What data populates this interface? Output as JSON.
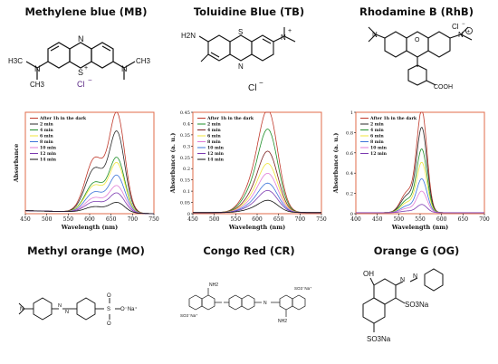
{
  "titles": {
    "mb": "Methylene blue (MB)",
    "tb": "Toluidine Blue (TB)",
    "rhb": "Rhodamine B (RhB)",
    "mo": "Methyl orange (MO)",
    "cr": "Congo Red (CR)",
    "og": "Orange G (OG)"
  },
  "structure_labels": {
    "mb": {
      "N_top": "N",
      "S": "S",
      "plus": "+",
      "Cl": "Cl",
      "minus": "−",
      "N_left": "N",
      "N_right": "N",
      "H3C": "H3C",
      "CH3_l": "CH3",
      "CH3_r": "CH3"
    },
    "tb": {
      "H2N": "H2N",
      "S": "S",
      "N_mid": "N",
      "N_plus": "N",
      "plus": "+",
      "Cl": "Cl",
      "minus": "−"
    },
    "rhb": {
      "Cl": "Cl",
      "minus": "−",
      "N_l": "N",
      "N_r": "N",
      "plus": "+",
      "O": "O",
      "COOH": "COOH"
    },
    "mo": {
      "N_amine": "N",
      "N1": "N",
      "N2": "N",
      "S": "S",
      "O_top": "O",
      "O_bot": "O",
      "ONa": "O⁻Na⁺"
    },
    "cr": {
      "NH2_top": "NH2",
      "NH2_bot": "NH2",
      "SO3Na_l": "SO3⁻Na⁺",
      "SO3Na_r": "SO3⁻Na⁺",
      "N": "N"
    },
    "og": {
      "OH": "OH",
      "N1": "N",
      "N2": "N",
      "SO3Na_1": "SO3Na",
      "SO3Na_2": "SO3Na"
    }
  },
  "colors": {
    "panel_border": "#e06b4a",
    "series": [
      "#c0392b",
      "#2b2b2b",
      "#1f8f2a",
      "#f0e63a",
      "#3d74d9",
      "#e07bd6",
      "#7b3ab0",
      "#111111",
      "#8a4b2a"
    ]
  },
  "chart_data": [
    {
      "id": "mb",
      "type": "line",
      "xlabel": "Wavelength (nm)",
      "ylabel": "Absorbance",
      "xlim": [
        450,
        750
      ],
      "xticks": [
        450,
        500,
        550,
        600,
        650,
        700,
        750
      ],
      "ylim": [
        0,
        1
      ],
      "yticks": [],
      "legend_position": "top-left",
      "peak_x": 664,
      "shoulder_x": 612,
      "series": [
        {
          "name": "After 1h in the dark",
          "peak": 0.96,
          "color": "#c0392b"
        },
        {
          "name": "2 min",
          "peak": 0.78,
          "color": "#2b2b2b"
        },
        {
          "name": "4 min",
          "peak": 0.53,
          "color": "#1f8f2a"
        },
        {
          "name": "6 min",
          "peak": 0.48,
          "color": "#f0e63a"
        },
        {
          "name": "8 min",
          "peak": 0.36,
          "color": "#3d74d9"
        },
        {
          "name": "10 min",
          "peak": 0.26,
          "color": "#e07bd6"
        },
        {
          "name": "12 min",
          "peak": 0.19,
          "color": "#7b3ab0"
        },
        {
          "name": "14 min",
          "peak": 0.1,
          "color": "#111111"
        }
      ]
    },
    {
      "id": "tb",
      "type": "line",
      "xlabel": "Wavelength (nm)",
      "ylabel": "Absorbance (a. u.)",
      "xlim": [
        450,
        750
      ],
      "xticks": [
        450,
        500,
        550,
        600,
        650,
        700,
        750
      ],
      "ylim": [
        0,
        0.45
      ],
      "yticks": [
        0.0,
        0.05,
        0.1,
        0.15,
        0.2,
        0.25,
        0.3,
        0.35,
        0.4,
        0.45
      ],
      "legend_position": "top-left",
      "peak_x": 627,
      "series": [
        {
          "name": "After 1h in the dark",
          "peak": 0.42,
          "color": "#c0392b"
        },
        {
          "name": "2 min",
          "peak": 0.34,
          "color": "#1f8f2a"
        },
        {
          "name": "4 min",
          "peak": 0.25,
          "color": "#7b1f1f"
        },
        {
          "name": "6 min",
          "peak": 0.2,
          "color": "#f0e63a"
        },
        {
          "name": "8 min",
          "peak": 0.16,
          "color": "#e07bd6"
        },
        {
          "name": "10 min",
          "peak": 0.12,
          "color": "#3d74d9"
        },
        {
          "name": "12 min",
          "peak": 0.09,
          "color": "#7b3ab0"
        },
        {
          "name": "14 min",
          "peak": 0.05,
          "color": "#111111"
        }
      ]
    },
    {
      "id": "rhb",
      "type": "line",
      "xlabel": "Wavelength (nm)",
      "ylabel": "Absorbance (a. u.)",
      "xlim": [
        400,
        700
      ],
      "xticks": [
        400,
        450,
        500,
        550,
        600,
        650,
        700
      ],
      "ylim": [
        0,
        1.0
      ],
      "yticks": [
        0.0,
        0.2,
        0.4,
        0.6,
        0.8,
        1.0
      ],
      "legend_position": "top-left",
      "peak_x": 554,
      "series": [
        {
          "name": "After 1h in the dark",
          "peak": 1.0,
          "color": "#c0392b"
        },
        {
          "name": "2 min",
          "peak": 0.83,
          "color": "#2b2b2b"
        },
        {
          "name": "4 min",
          "peak": 0.62,
          "color": "#1f8f2a"
        },
        {
          "name": "6 min",
          "peak": 0.49,
          "color": "#f0e63a"
        },
        {
          "name": "8 min",
          "peak": 0.33,
          "color": "#3d74d9"
        },
        {
          "name": "10 min",
          "peak": 0.21,
          "color": "#e07bd6"
        },
        {
          "name": "12 min",
          "peak": 0.08,
          "color": "#7b3ab0"
        }
      ]
    }
  ]
}
